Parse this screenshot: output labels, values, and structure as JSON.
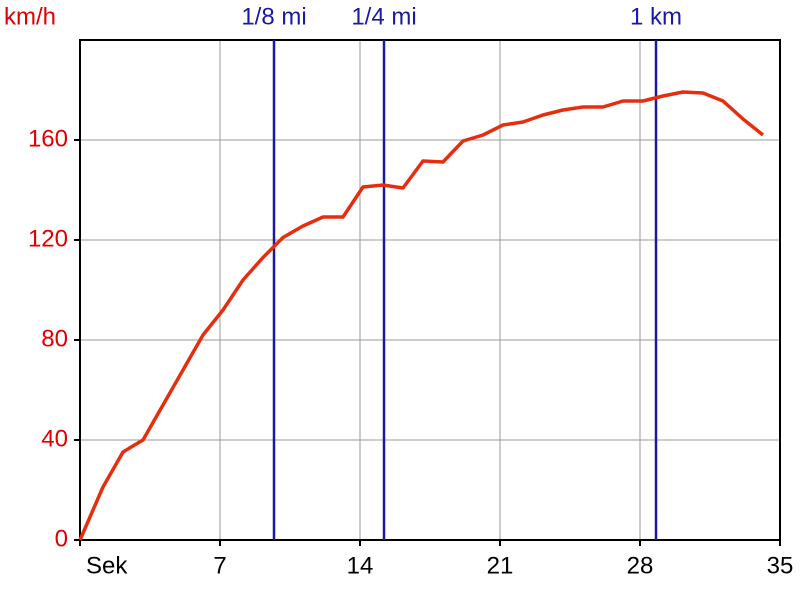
{
  "chart_data": {
    "type": "line",
    "ylabel": "km/h",
    "x": [
      0,
      1.15,
      2.15,
      3.15,
      4.15,
      5.15,
      6.15,
      7.15,
      8.15,
      9.15,
      10.15,
      11.15,
      12.15,
      13.15,
      14.15,
      15.15,
      16.15,
      17.15,
      18.15,
      19.15,
      20.15,
      21.15,
      22.15,
      23.15,
      24.15,
      25.15,
      26.15,
      27.15,
      28.15,
      29.15,
      30.15,
      31.15,
      32.15,
      33.15,
      34.15
    ],
    "series": [
      {
        "color": "#e62e0f",
        "values": [
          0,
          21.2,
          35.2,
          40,
          54,
          68,
          82,
          92,
          104,
          113,
          121,
          125.6,
          129.2,
          129.2,
          141.2,
          142,
          140.8,
          151.6,
          151.2,
          159.6,
          162,
          166,
          167.2,
          170,
          172,
          173.2,
          173.2,
          175.6,
          175.6,
          177.6,
          179.2,
          178.8,
          175.6,
          168.4,
          162
        ]
      }
    ],
    "xlim": [
      0,
      35
    ],
    "xticks": [
      {
        "value": 0,
        "label": "Sek"
      },
      7,
      14,
      21,
      28,
      35
    ],
    "ylim": [
      0,
      200
    ],
    "yticks": [
      0,
      40,
      80,
      120,
      160
    ],
    "grid": true,
    "markers": [
      {
        "label": "1/8 mi",
        "x": 9.7
      },
      {
        "label": "1/4 mi",
        "x": 15.2
      },
      {
        "label": "1 km",
        "x": 28.8
      }
    ],
    "marker_color": "#1a1aa0",
    "tick_color": "#e00000"
  }
}
